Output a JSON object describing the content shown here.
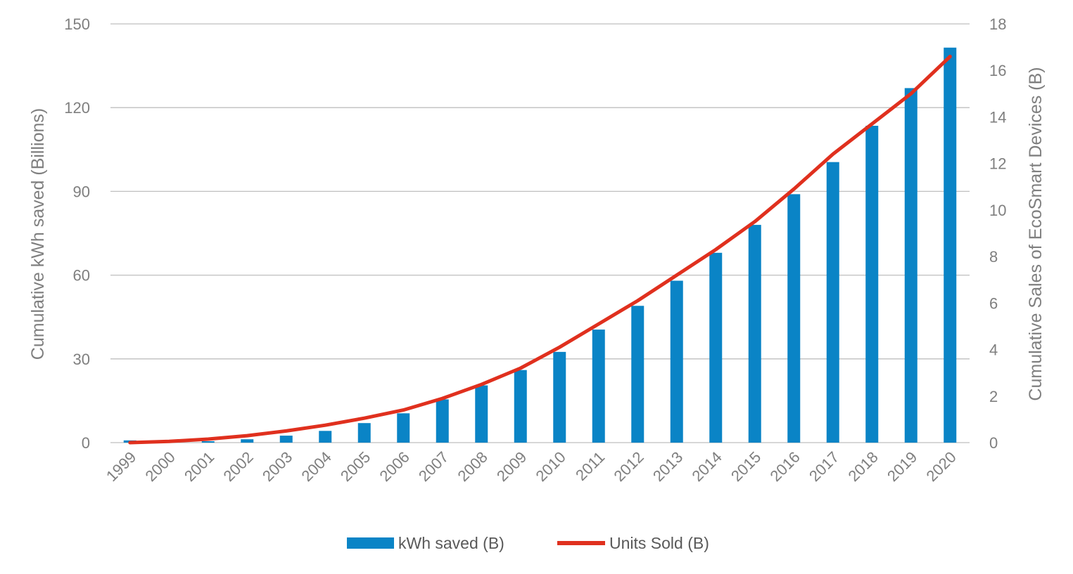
{
  "chart_data": {
    "type": "bar",
    "categories": [
      "1999",
      "2000",
      "2001",
      "2002",
      "2003",
      "2004",
      "2005",
      "2006",
      "2007",
      "2008",
      "2009",
      "2010",
      "2011",
      "2012",
      "2013",
      "2014",
      "2015",
      "2016",
      "2017",
      "2018",
      "2019",
      "2020"
    ],
    "series": [
      {
        "name": "kWh saved (B)",
        "type": "bar",
        "axis": "left",
        "color": "#0a84c6",
        "values": [
          0.8,
          0.3,
          0.5,
          1.2,
          2.5,
          4.2,
          7.0,
          10.5,
          15.5,
          20.5,
          26.0,
          32.5,
          40.5,
          49.0,
          58.0,
          68.0,
          78.0,
          89.0,
          100.5,
          113.5,
          127.0,
          141.5
        ]
      },
      {
        "name": "Units Sold (B)",
        "type": "line",
        "axis": "right",
        "color": "#e0301e",
        "values": [
          0.0,
          0.05,
          0.15,
          0.3,
          0.5,
          0.75,
          1.05,
          1.4,
          1.9,
          2.5,
          3.2,
          4.1,
          5.1,
          6.1,
          7.2,
          8.3,
          9.5,
          10.9,
          12.4,
          13.7,
          15.0,
          16.6
        ]
      }
    ],
    "y_left": {
      "label": "Cumulative kWh saved (Billions)",
      "ticks": [
        "0",
        "30",
        "60",
        "90",
        "120",
        "150"
      ],
      "range": [
        0,
        150
      ]
    },
    "y_right": {
      "label": "Cumulative Sales of EcoSmart Devices (B)",
      "ticks": [
        "0",
        "2",
        "4",
        "6",
        "8",
        "10",
        "12",
        "14",
        "16",
        "18"
      ],
      "range": [
        0,
        18
      ]
    },
    "grid": true,
    "legend": "bottom"
  }
}
